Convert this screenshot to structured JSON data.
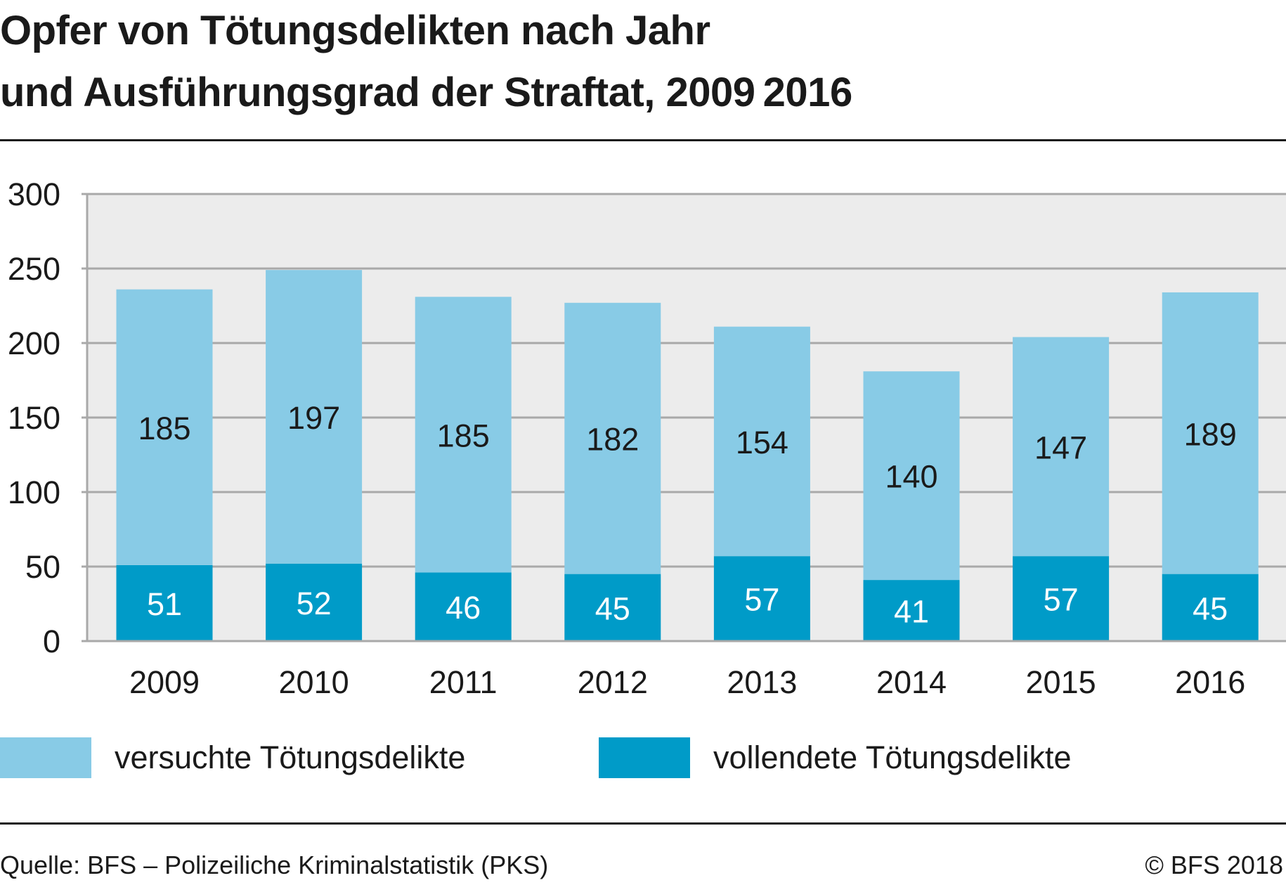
{
  "title": {
    "line1": "Opfer von Tötungsdelikten nach Jahr",
    "line2": "und Ausführungsgrad der Straftat, 2009 2016"
  },
  "source": "Quelle: BFS – Polizeiliche Kriminalstatistik (PKS)",
  "copyright": "© BFS 2018",
  "colors": {
    "versucht": "#88cbe6",
    "vollendet": "#009bc8",
    "plot_background": "#ececec",
    "grid": "#a9a9a9"
  },
  "chart_data": {
    "type": "bar",
    "stacked": true,
    "categories": [
      "2009",
      "2010",
      "2011",
      "2012",
      "2013",
      "2014",
      "2015",
      "2016"
    ],
    "series": [
      {
        "name": "vollendete Tötungsdelikte",
        "values": [
          51,
          52,
          46,
          45,
          57,
          41,
          57,
          45
        ],
        "color": "#009bc8",
        "label_color": "#ffffff"
      },
      {
        "name": "versuchte Tötungsdelikte",
        "values": [
          185,
          197,
          185,
          182,
          154,
          140,
          147,
          189
        ],
        "color": "#88cbe6",
        "label_color": "#1a1a1a"
      }
    ],
    "yticks": [
      "0",
      "50",
      "100",
      "150",
      "200",
      "250",
      "300"
    ],
    "ylim": [
      0,
      300
    ],
    "grid": true,
    "legend_position": "bottom",
    "legend": [
      {
        "label": "versuchte Tötungsdelikte",
        "color": "#88cbe6"
      },
      {
        "label": "vollendete Tötungsdelikte",
        "color": "#009bc8"
      }
    ]
  }
}
